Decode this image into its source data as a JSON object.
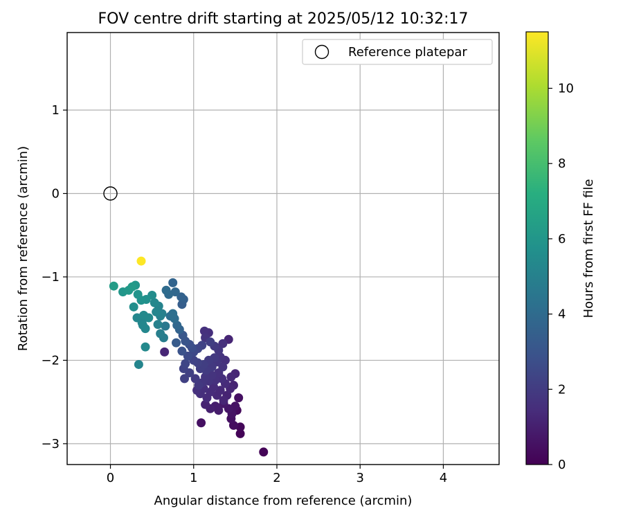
{
  "chart_data": {
    "type": "scatter",
    "title": "FOV centre drift starting at 2025/05/12 10:32:17",
    "xlabel": "Angular distance from reference (arcmin)",
    "ylabel": "Rotation from reference (arcmin)",
    "xlim": [
      -0.52,
      4.67
    ],
    "ylim": [
      -3.25,
      1.93
    ],
    "xticks": [
      0,
      1,
      2,
      3,
      4
    ],
    "yticks": [
      -3,
      -2,
      -1,
      0,
      1
    ],
    "grid": true,
    "legend": {
      "position": "top-right",
      "entries": [
        "Reference platepar"
      ]
    },
    "colorbar": {
      "label": "Hours from first FF file",
      "min": 0,
      "max": 11.5,
      "ticks": [
        0,
        2,
        4,
        6,
        8,
        10
      ],
      "colormap": "viridis"
    },
    "reference_point": {
      "x": 0,
      "y": 0,
      "marker": "open-circle"
    },
    "series": [
      {
        "points": [
          [
            0.37,
            -0.81,
            11.5
          ],
          [
            0.04,
            -1.11,
            6.3
          ],
          [
            0.15,
            -1.18,
            6.0
          ],
          [
            0.22,
            -1.16,
            6.1
          ],
          [
            0.26,
            -1.12,
            6.2
          ],
          [
            0.3,
            -1.1,
            6.0
          ],
          [
            0.28,
            -1.36,
            5.6
          ],
          [
            0.33,
            -1.21,
            5.9
          ],
          [
            0.37,
            -1.28,
            5.8
          ],
          [
            0.43,
            -1.27,
            5.7
          ],
          [
            0.4,
            -1.46,
            5.4
          ],
          [
            0.32,
            -1.49,
            5.3
          ],
          [
            0.46,
            -1.49,
            5.4
          ],
          [
            0.5,
            -1.22,
            5.5
          ],
          [
            0.53,
            -1.31,
            5.3
          ],
          [
            0.58,
            -1.35,
            5.1
          ],
          [
            0.55,
            -1.42,
            5.2
          ],
          [
            0.6,
            -1.47,
            5.0
          ],
          [
            0.57,
            -1.57,
            5.0
          ],
          [
            0.62,
            -1.44,
            4.9
          ],
          [
            0.39,
            -1.58,
            5.3
          ],
          [
            0.42,
            -1.62,
            5.3
          ],
          [
            0.38,
            -1.55,
            5.2
          ],
          [
            0.42,
            -1.84,
            5.4
          ],
          [
            0.34,
            -2.05,
            5.2
          ],
          [
            0.6,
            -1.68,
            4.9
          ],
          [
            0.64,
            -1.73,
            4.8
          ],
          [
            0.67,
            -1.16,
            4.0
          ],
          [
            0.7,
            -1.21,
            3.9
          ],
          [
            0.75,
            -1.07,
            3.7
          ],
          [
            0.78,
            -1.18,
            3.8
          ],
          [
            0.85,
            -1.24,
            3.6
          ],
          [
            0.88,
            -1.27,
            3.5
          ],
          [
            0.86,
            -1.33,
            3.4
          ],
          [
            0.66,
            -1.59,
            4.6
          ],
          [
            0.72,
            -1.47,
            4.2
          ],
          [
            0.77,
            -1.5,
            4.1
          ],
          [
            0.75,
            -1.44,
            4.2
          ],
          [
            0.8,
            -1.58,
            3.8
          ],
          [
            0.83,
            -1.63,
            3.6
          ],
          [
            0.65,
            -1.9,
            1.2
          ],
          [
            0.79,
            -1.79,
            3.3
          ],
          [
            0.87,
            -1.7,
            3.1
          ],
          [
            0.9,
            -1.77,
            3.0
          ],
          [
            0.95,
            -1.81,
            2.8
          ],
          [
            0.98,
            -1.85,
            2.7
          ],
          [
            0.86,
            -1.89,
            2.9
          ],
          [
            0.93,
            -1.95,
            2.6
          ],
          [
            1.0,
            -1.9,
            2.5
          ],
          [
            1.05,
            -1.86,
            2.4
          ],
          [
            1.1,
            -1.82,
            2.3
          ],
          [
            1.13,
            -1.65,
            1.6
          ],
          [
            1.18,
            -1.67,
            1.5
          ],
          [
            1.14,
            -1.73,
            1.7
          ],
          [
            1.2,
            -1.78,
            2.1
          ],
          [
            1.25,
            -1.83,
            1.9
          ],
          [
            1.3,
            -1.88,
            1.8
          ],
          [
            1.35,
            -1.8,
            1.6
          ],
          [
            1.42,
            -1.75,
            1.2
          ],
          [
            0.9,
            -2.04,
            2.4
          ],
          [
            0.88,
            -2.1,
            2.3
          ],
          [
            0.89,
            -2.22,
            2.2
          ],
          [
            0.95,
            -2.15,
            2.2
          ],
          [
            1.0,
            -2.0,
            2.3
          ],
          [
            1.05,
            -2.03,
            2.2
          ],
          [
            1.08,
            -2.1,
            2.1
          ],
          [
            1.12,
            -2.05,
            2.1
          ],
          [
            1.15,
            -2.12,
            2.0
          ],
          [
            1.18,
            -2.0,
            2.0
          ],
          [
            1.22,
            -2.08,
            1.9
          ],
          [
            1.25,
            -1.97,
            1.9
          ],
          [
            1.28,
            -2.02,
            1.8
          ],
          [
            1.32,
            -1.96,
            1.7
          ],
          [
            1.35,
            -2.08,
            1.7
          ],
          [
            1.38,
            -2.0,
            1.6
          ],
          [
            1.02,
            -2.22,
            2.0
          ],
          [
            1.06,
            -2.3,
            1.9
          ],
          [
            1.1,
            -2.27,
            1.8
          ],
          [
            1.14,
            -2.2,
            1.8
          ],
          [
            1.18,
            -2.25,
            1.7
          ],
          [
            1.22,
            -2.18,
            1.7
          ],
          [
            1.26,
            -2.24,
            1.6
          ],
          [
            1.3,
            -2.15,
            1.6
          ],
          [
            1.34,
            -2.22,
            1.5
          ],
          [
            1.38,
            -2.28,
            1.4
          ],
          [
            1.45,
            -2.2,
            1.3
          ],
          [
            1.5,
            -2.16,
            1.2
          ],
          [
            1.04,
            -2.36,
            1.6
          ],
          [
            1.08,
            -2.4,
            1.5
          ],
          [
            1.12,
            -2.34,
            1.5
          ],
          [
            1.16,
            -2.45,
            1.4
          ],
          [
            1.2,
            -2.38,
            1.4
          ],
          [
            1.24,
            -2.32,
            1.4
          ],
          [
            1.28,
            -2.42,
            1.3
          ],
          [
            1.32,
            -2.36,
            1.3
          ],
          [
            1.36,
            -2.48,
            1.2
          ],
          [
            1.4,
            -2.42,
            1.1
          ],
          [
            1.44,
            -2.34,
            1.2
          ],
          [
            1.48,
            -2.3,
            1.1
          ],
          [
            1.14,
            -2.53,
            1.1
          ],
          [
            1.2,
            -2.58,
            1.0
          ],
          [
            1.26,
            -2.55,
            0.9
          ],
          [
            1.3,
            -2.6,
            0.9
          ],
          [
            1.36,
            -2.52,
            0.8
          ],
          [
            1.42,
            -2.58,
            0.7
          ],
          [
            1.46,
            -2.64,
            0.6
          ],
          [
            1.5,
            -2.55,
            0.6
          ],
          [
            1.54,
            -2.45,
            0.5
          ],
          [
            1.45,
            -2.7,
            0.5
          ],
          [
            1.48,
            -2.78,
            0.4
          ],
          [
            1.52,
            -2.6,
            0.3
          ],
          [
            1.56,
            -2.8,
            0.2
          ],
          [
            1.56,
            -2.88,
            0.1
          ],
          [
            1.09,
            -2.75,
            0.5
          ],
          [
            1.84,
            -3.1,
            0.1
          ]
        ]
      }
    ]
  }
}
